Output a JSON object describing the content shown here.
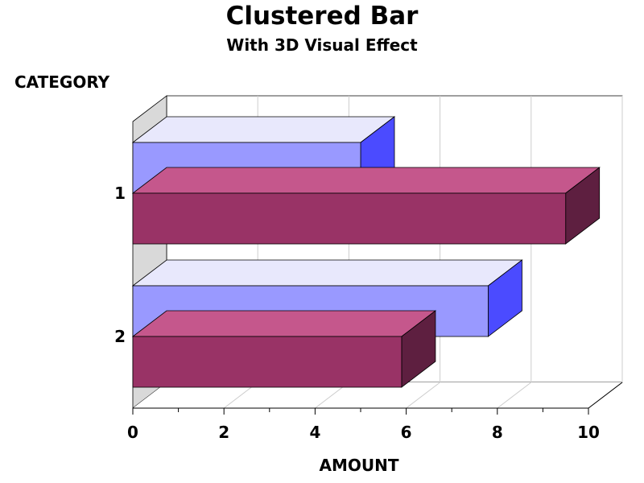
{
  "chart_data": {
    "type": "bar",
    "orientation": "horizontal",
    "effect": "3d",
    "title": "Clustered Bar",
    "subtitle": "With 3D Visual Effect",
    "ylabel": "CATEGORY",
    "xlabel": "AMOUNT",
    "categories": [
      "1",
      "2"
    ],
    "series": [
      {
        "values": [
          5,
          7.8
        ],
        "color": "#9999ff",
        "top_color": "#e8e8fc",
        "side_color": "#4b4bff"
      },
      {
        "values": [
          9.5,
          5.9
        ],
        "color": "#993366",
        "top_color": "#c5578c",
        "side_color": "#5e1f40"
      }
    ],
    "xticks": [
      "0",
      "2",
      "4",
      "6",
      "8",
      "10"
    ],
    "xlim": [
      0,
      10
    ],
    "grid": true
  }
}
